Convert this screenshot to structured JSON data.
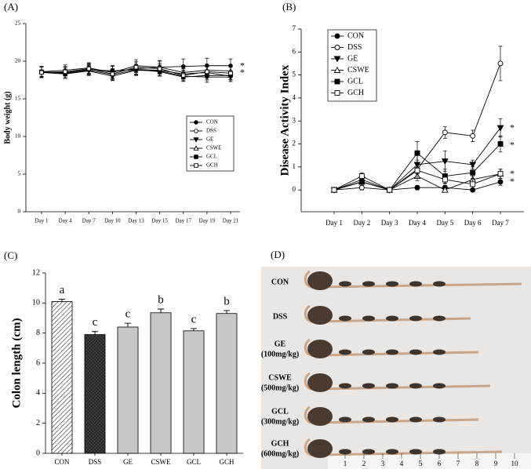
{
  "chart_data": [
    {
      "type": "line",
      "panel_label": "(A)",
      "ylabel": "Body weight (g)",
      "categories": [
        "Day 1",
        "Day 4",
        "Day 7",
        "Day 10",
        "Day 13",
        "Day 15",
        "Day 17",
        "Day 19",
        "Day 21"
      ],
      "ylim": [
        0,
        25
      ],
      "yticks": [
        0,
        5,
        10,
        15,
        20,
        25
      ],
      "legend": "right",
      "series": [
        {
          "name": "CON",
          "marker": "circle",
          "filled": true,
          "color": "#000000",
          "values": [
            18.6,
            18.5,
            18.9,
            18.6,
            19.0,
            19.2,
            19.3,
            19.4,
            19.4
          ],
          "errors": [
            0.7,
            0.8,
            0.7,
            0.8,
            0.9,
            0.9,
            1.0,
            1.0,
            0.9
          ]
        },
        {
          "name": "DSS",
          "marker": "circle",
          "filled": false,
          "color": "#000000",
          "values": [
            18.6,
            18.4,
            18.8,
            18.2,
            18.9,
            18.8,
            18.3,
            18.5,
            18.0
          ],
          "errors": [
            0.7,
            0.7,
            0.6,
            0.7,
            0.7,
            0.7,
            0.7,
            0.8,
            0.7
          ]
        },
        {
          "name": "GE",
          "marker": "tri-down",
          "filled": true,
          "color": "#000000",
          "values": [
            18.5,
            18.3,
            18.7,
            18.0,
            18.8,
            18.7,
            18.0,
            17.9,
            17.9
          ],
          "errors": [
            0.7,
            0.6,
            0.6,
            0.6,
            0.6,
            0.6,
            0.6,
            0.7,
            0.6
          ]
        },
        {
          "name": "CSWE",
          "marker": "tri-up",
          "filled": false,
          "color": "#000000",
          "values": [
            18.6,
            18.8,
            19.1,
            18.5,
            19.4,
            19.2,
            18.5,
            18.8,
            18.7
          ],
          "errors": [
            0.7,
            0.7,
            0.7,
            0.8,
            0.8,
            0.8,
            0.7,
            0.8,
            0.8
          ]
        },
        {
          "name": "GCL",
          "marker": "square",
          "filled": true,
          "color": "#000000",
          "values": [
            18.6,
            18.3,
            18.9,
            18.7,
            18.9,
            18.6,
            17.9,
            18.1,
            18.1
          ],
          "errors": [
            0.6,
            0.6,
            0.6,
            0.7,
            0.6,
            0.6,
            0.6,
            0.6,
            0.6
          ]
        },
        {
          "name": "GCH",
          "marker": "square",
          "filled": false,
          "color": "#000000",
          "values": [
            18.5,
            18.6,
            19.0,
            18.3,
            19.2,
            19.0,
            18.1,
            18.6,
            18.4
          ],
          "errors": [
            0.7,
            0.7,
            0.7,
            0.7,
            0.7,
            0.7,
            0.7,
            0.7,
            0.8
          ]
        }
      ],
      "annotations": [
        {
          "text": "*",
          "y": 19.5
        },
        {
          "text": "*",
          "y": 18.6
        }
      ]
    },
    {
      "type": "line",
      "panel_label": "(B)",
      "ylabel": "Disease Activity Index",
      "categories": [
        "Day 1",
        "Day 2",
        "Day 3",
        "Day 4",
        "Day 5",
        "Day 6",
        "Day 7"
      ],
      "ylim": [
        -0.95,
        7
      ],
      "yticks": [
        0,
        1,
        2,
        3,
        4,
        5,
        6,
        7
      ],
      "legend": "upper-left",
      "series": [
        {
          "name": "CON",
          "marker": "circle",
          "filled": true,
          "color": "#000000",
          "values": [
            0,
            0.35,
            0,
            0.1,
            0.1,
            0,
            0.35
          ],
          "errors": [
            0,
            0.1,
            0,
            0.1,
            0.1,
            0,
            0.15
          ]
        },
        {
          "name": "DSS",
          "marker": "circle",
          "filled": false,
          "color": "#000000",
          "values": [
            0,
            0.1,
            0,
            0.9,
            2.5,
            2.35,
            5.5
          ],
          "errors": [
            0,
            0.1,
            0,
            0.4,
            0.25,
            0.25,
            0.75
          ]
        },
        {
          "name": "GE",
          "marker": "tri-down",
          "filled": true,
          "color": "#000000",
          "values": [
            0,
            0.45,
            0,
            1.1,
            1.25,
            1.1,
            2.7
          ],
          "errors": [
            0,
            0.2,
            0,
            0.4,
            0.45,
            0.2,
            0.4
          ]
        },
        {
          "name": "CSWE",
          "marker": "tri-up",
          "filled": false,
          "color": "#000000",
          "values": [
            0,
            0.35,
            0,
            0.6,
            0,
            0.45,
            0.7
          ],
          "errors": [
            0,
            0.15,
            0,
            0.2,
            0.05,
            0.15,
            0.2
          ]
        },
        {
          "name": "GCL",
          "marker": "square",
          "filled": true,
          "color": "#000000",
          "values": [
            0,
            0.35,
            0,
            1.6,
            0.6,
            0.75,
            2.0
          ],
          "errors": [
            0,
            0.15,
            0,
            0.5,
            0.3,
            0.25,
            0.35
          ]
        },
        {
          "name": "GCH",
          "marker": "square",
          "filled": false,
          "color": "#000000",
          "values": [
            0,
            0.6,
            0,
            0.85,
            0.45,
            0.25,
            0.7
          ],
          "errors": [
            0,
            0.15,
            0,
            0.3,
            0.2,
            0.2,
            0.2
          ]
        }
      ],
      "annotations": [
        {
          "text": "*",
          "y": 2.75
        },
        {
          "text": "*",
          "y": 2.0
        },
        {
          "text": "*",
          "y": 0.75
        },
        {
          "text": "*",
          "y": 0.4
        }
      ]
    },
    {
      "type": "bar",
      "panel_label": "(C)",
      "ylabel": "Colon length (cm)",
      "categories": [
        "CON",
        "DSS",
        "GE",
        "CSWE",
        "GCL",
        "GCH"
      ],
      "values": [
        10.1,
        7.9,
        8.4,
        9.35,
        8.15,
        9.3
      ],
      "errors": [
        0.15,
        0.2,
        0.25,
        0.25,
        0.15,
        0.2
      ],
      "letters": [
        "a",
        "c",
        "c",
        "b",
        "c",
        "b"
      ],
      "fills": [
        "hatch",
        "crosshatch",
        "solid",
        "solid",
        "solid",
        "solid"
      ],
      "color": "#c8c8c8",
      "ylim": [
        0,
        12
      ],
      "yticks": [
        0,
        2,
        4,
        6,
        8,
        10,
        12
      ]
    }
  ],
  "photo": {
    "panel_label": "(D)",
    "rows": [
      {
        "name": "CON"
      },
      {
        "name": "DSS"
      },
      {
        "name": "GE",
        "dose": "(100mg/kg)"
      },
      {
        "name": "CSWE",
        "dose": "(500mg/kg)"
      },
      {
        "name": "GCL",
        "dose": "(300mg/kg)"
      },
      {
        "name": "GCH",
        "dose": "(600mg/kg)"
      }
    ],
    "ruler": [
      "1",
      "2",
      "3",
      "4",
      "5",
      "6",
      "7",
      "8",
      "9",
      "10"
    ]
  }
}
